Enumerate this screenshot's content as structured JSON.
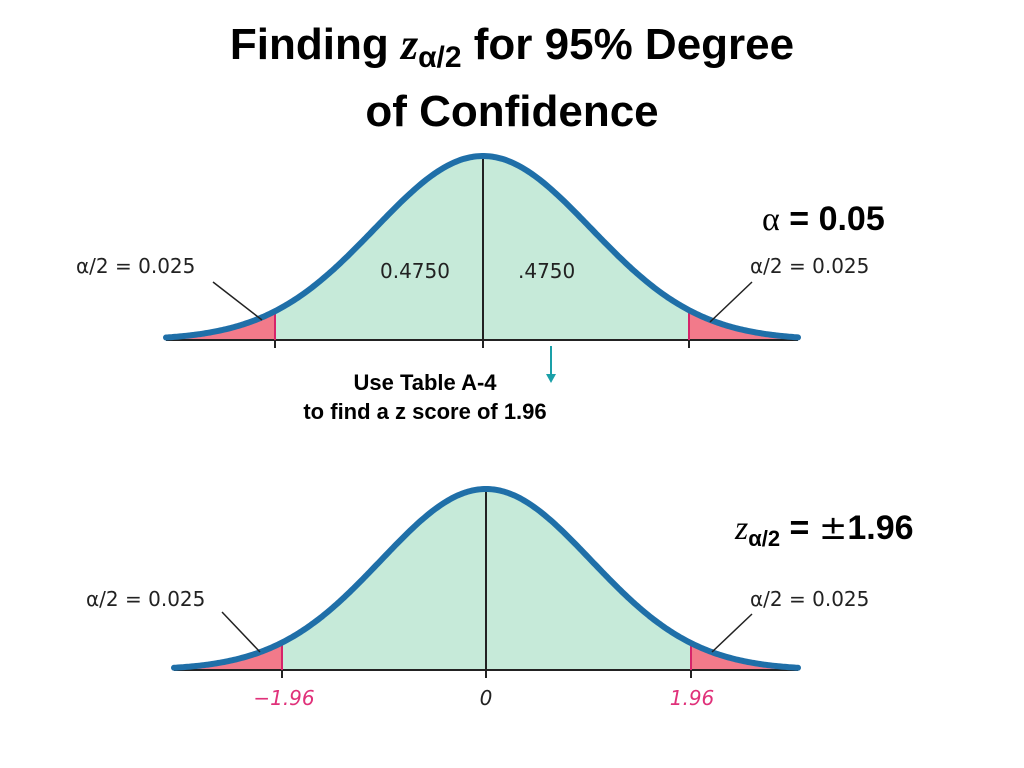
{
  "title": {
    "prefix": "Finding ",
    "z": "z",
    "sub": "α/2",
    "suffix": " for 95% Degree",
    "line2": "of Confidence"
  },
  "alpha_label": {
    "symbol": "α",
    "text": " = 0.05"
  },
  "z_label": {
    "z": "z",
    "sub": "α/2",
    "eq": " = ",
    "pm": "±",
    "value": "1.96"
  },
  "note": {
    "line1": "Use Table A-4",
    "line2": "to find a z score of 1.96"
  },
  "top_curve": {
    "left_tail_label": "α/2 = 0.025",
    "right_tail_label": "α/2 = 0.025",
    "left_area": "0.4750",
    "right_area": ".4750"
  },
  "bottom_curve": {
    "left_tail_label": "α/2 = 0.025",
    "right_tail_label": "α/2 = 0.025",
    "tick_left": "−1.96",
    "tick_center": "0",
    "tick_right": "1.96"
  },
  "colors": {
    "curve": "#1f6fa8",
    "body_fill": "#c6ead9",
    "tail_fill": "#f27a8a",
    "tail_line": "#d6246a",
    "tick_pink": "#e0317a",
    "arrow": "#1aa0a8"
  }
}
